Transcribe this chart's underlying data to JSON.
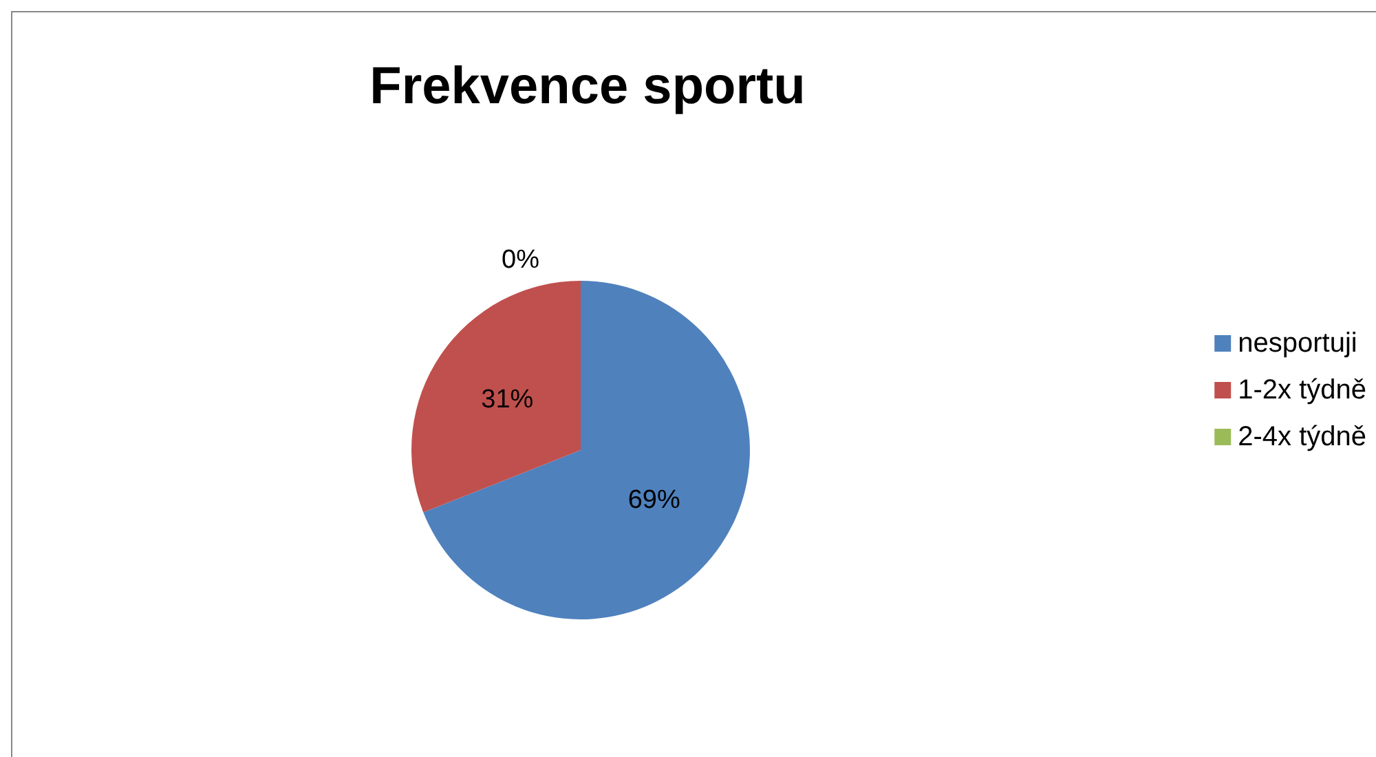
{
  "chart_data": {
    "type": "pie",
    "title": "Frekvence sportu",
    "categories": [
      "nesportuji",
      "1-2x týdně",
      "2-4x týdně"
    ],
    "values": [
      69,
      31,
      0
    ],
    "colors": [
      "#4f81bd",
      "#c0504d",
      "#9bbb59"
    ],
    "value_labels": [
      "69%",
      "31%",
      "0%"
    ],
    "legend": "right"
  }
}
